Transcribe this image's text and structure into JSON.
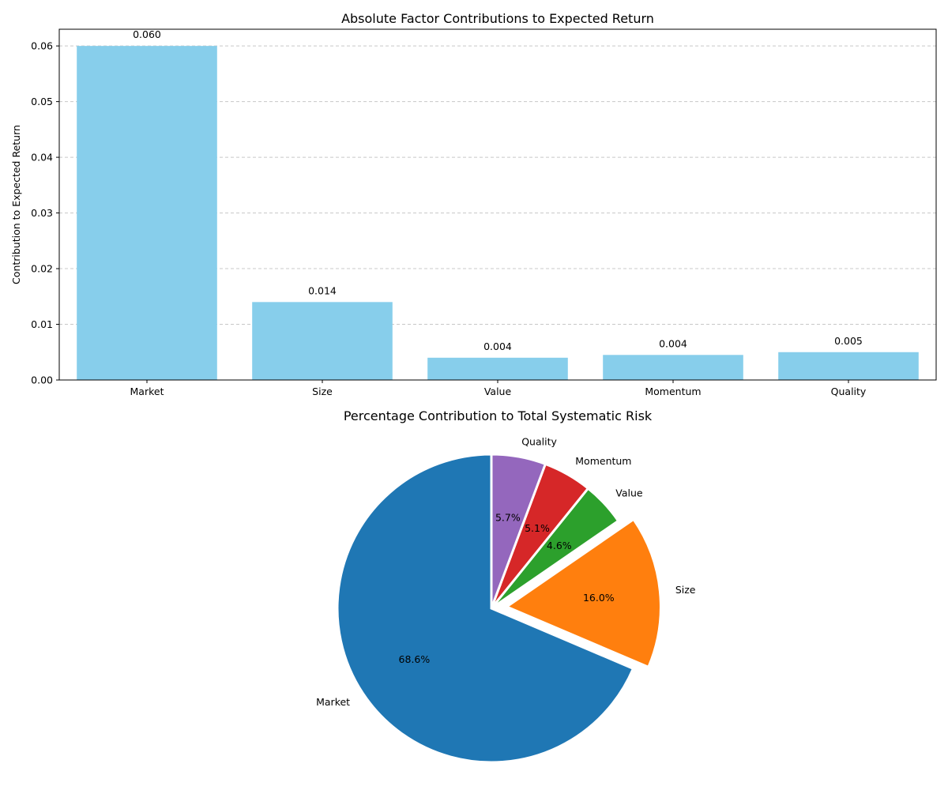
{
  "chart_data": [
    {
      "type": "bar",
      "title": "Absolute Factor Contributions to Expected Return",
      "xlabel": "",
      "ylabel": "Contribution to Expected Return",
      "categories": [
        "Market",
        "Size",
        "Value",
        "Momentum",
        "Quality"
      ],
      "values": [
        0.06,
        0.014,
        0.004,
        0.0045,
        0.005
      ],
      "value_labels": [
        "0.060",
        "0.014",
        "0.004",
        "0.004",
        "0.005"
      ],
      "ylim": [
        0,
        0.063
      ],
      "yticks": [
        0.0,
        0.01,
        0.02,
        0.03,
        0.04,
        0.05,
        0.06
      ],
      "ytick_labels": [
        "0.00",
        "0.01",
        "0.02",
        "0.03",
        "0.04",
        "0.05",
        "0.06"
      ],
      "grid": "y-dashed",
      "bar_color": "#87CEEB"
    },
    {
      "type": "pie",
      "title": "Percentage Contribution to Total Systematic Risk",
      "labels": [
        "Market",
        "Size",
        "Value",
        "Momentum",
        "Quality"
      ],
      "values": [
        68.6,
        16.0,
        4.6,
        5.1,
        5.7
      ],
      "pct_labels": [
        "68.6%",
        "16.0%",
        "4.6%",
        "5.1%",
        "5.7%"
      ],
      "colors": [
        "#1f77b4",
        "#ff7f0e",
        "#2ca02c",
        "#d62728",
        "#9467bd"
      ],
      "start_angle": 90,
      "explode": [
        0,
        0.1,
        0,
        0,
        0
      ]
    }
  ]
}
